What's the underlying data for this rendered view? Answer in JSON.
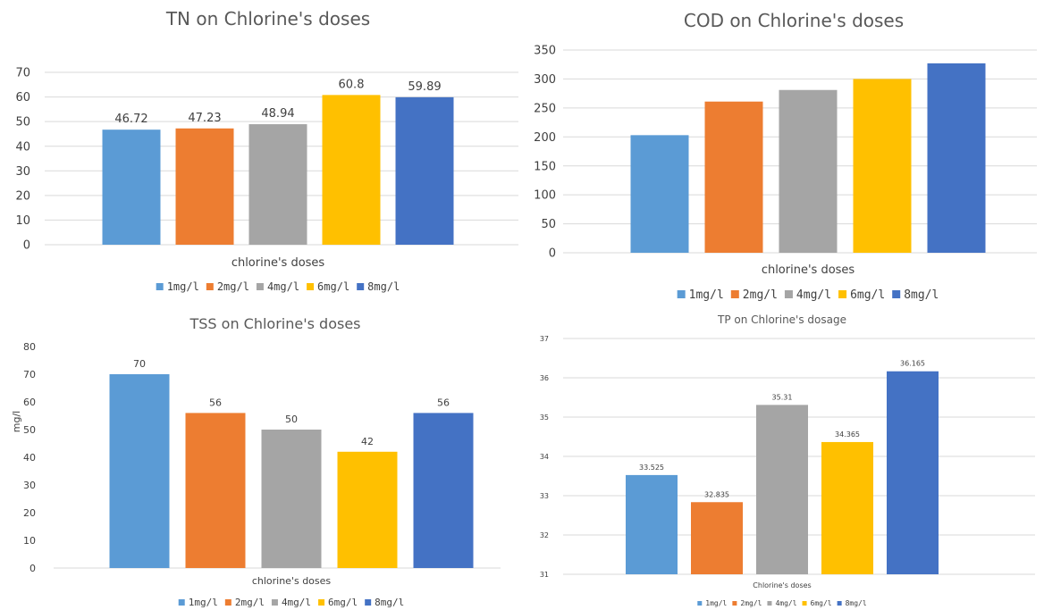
{
  "chart_data": [
    {
      "type": "bar",
      "title": "TN on Chlorine's doses",
      "xlabel": "chlorine's doses",
      "ylabel": "",
      "ylim": [
        0,
        70
      ],
      "yticks": [
        "0",
        "10",
        "20",
        "30",
        "40",
        "50",
        "60",
        "70"
      ],
      "grid": true,
      "legend_position": "bottom",
      "data_labels": true,
      "categories": [
        "1mg/l",
        "2mg/l",
        "4mg/l",
        "6mg/l",
        "8mg/l"
      ],
      "values": [
        46.72,
        47.23,
        48.94,
        60.8,
        59.89
      ],
      "value_labels": [
        "46.72",
        "47.23",
        "48.94",
        "60.8",
        "59.89"
      ],
      "colors": [
        "#5b9bd5",
        "#ed7d31",
        "#a5a5a5",
        "#ffc000",
        "#4472c4"
      ]
    },
    {
      "type": "bar",
      "title": "COD on Chlorine's doses",
      "xlabel": "chlorine's doses",
      "ylabel": "",
      "ylim": [
        0,
        350
      ],
      "yticks": [
        "0",
        "50",
        "100",
        "150",
        "200",
        "250",
        "300",
        "350"
      ],
      "grid": true,
      "legend_position": "bottom",
      "data_labels": false,
      "categories": [
        "1mg/l",
        "2mg/l",
        "4mg/l",
        "6mg/l",
        "8mg/l"
      ],
      "values": [
        203,
        261,
        281,
        300,
        327
      ],
      "value_labels": [],
      "colors": [
        "#5b9bd5",
        "#ed7d31",
        "#a5a5a5",
        "#ffc000",
        "#4472c4"
      ]
    },
    {
      "type": "bar",
      "title": "TSS on Chlorine's doses",
      "xlabel": "chlorine's doses",
      "ylabel": "mg/l",
      "ylim": [
        0,
        80
      ],
      "yticks": [
        "0",
        "10",
        "20",
        "30",
        "40",
        "50",
        "60",
        "70",
        "80"
      ],
      "grid": false,
      "legend_position": "bottom",
      "data_labels": true,
      "categories": [
        "1mg/l",
        "2mg/l",
        "4mg/l",
        "6mg/l",
        "8mg/l"
      ],
      "values": [
        70,
        56,
        50,
        42,
        56
      ],
      "value_labels": [
        "70",
        "56",
        "50",
        "42",
        "56"
      ],
      "colors": [
        "#5b9bd5",
        "#ed7d31",
        "#a5a5a5",
        "#ffc000",
        "#4472c4"
      ]
    },
    {
      "type": "bar",
      "title": "TP on Chlorine's dosage",
      "xlabel": "Chlorine's doses",
      "ylabel": "",
      "ylim": [
        31,
        37
      ],
      "yticks": [
        "31",
        "32",
        "33",
        "34",
        "35",
        "36",
        "37"
      ],
      "grid": true,
      "legend_position": "bottom",
      "data_labels": true,
      "categories": [
        "1mg/l",
        "2mg/l",
        "4mg/l",
        "6mg/l",
        "8mg/l"
      ],
      "values": [
        33.525,
        32.835,
        35.31,
        34.365,
        36.165
      ],
      "value_labels": [
        "33.525",
        "32.835",
        "35.31",
        "34.365",
        "36.165"
      ],
      "colors": [
        "#5b9bd5",
        "#ed7d31",
        "#a5a5a5",
        "#ffc000",
        "#4472c4"
      ]
    }
  ]
}
